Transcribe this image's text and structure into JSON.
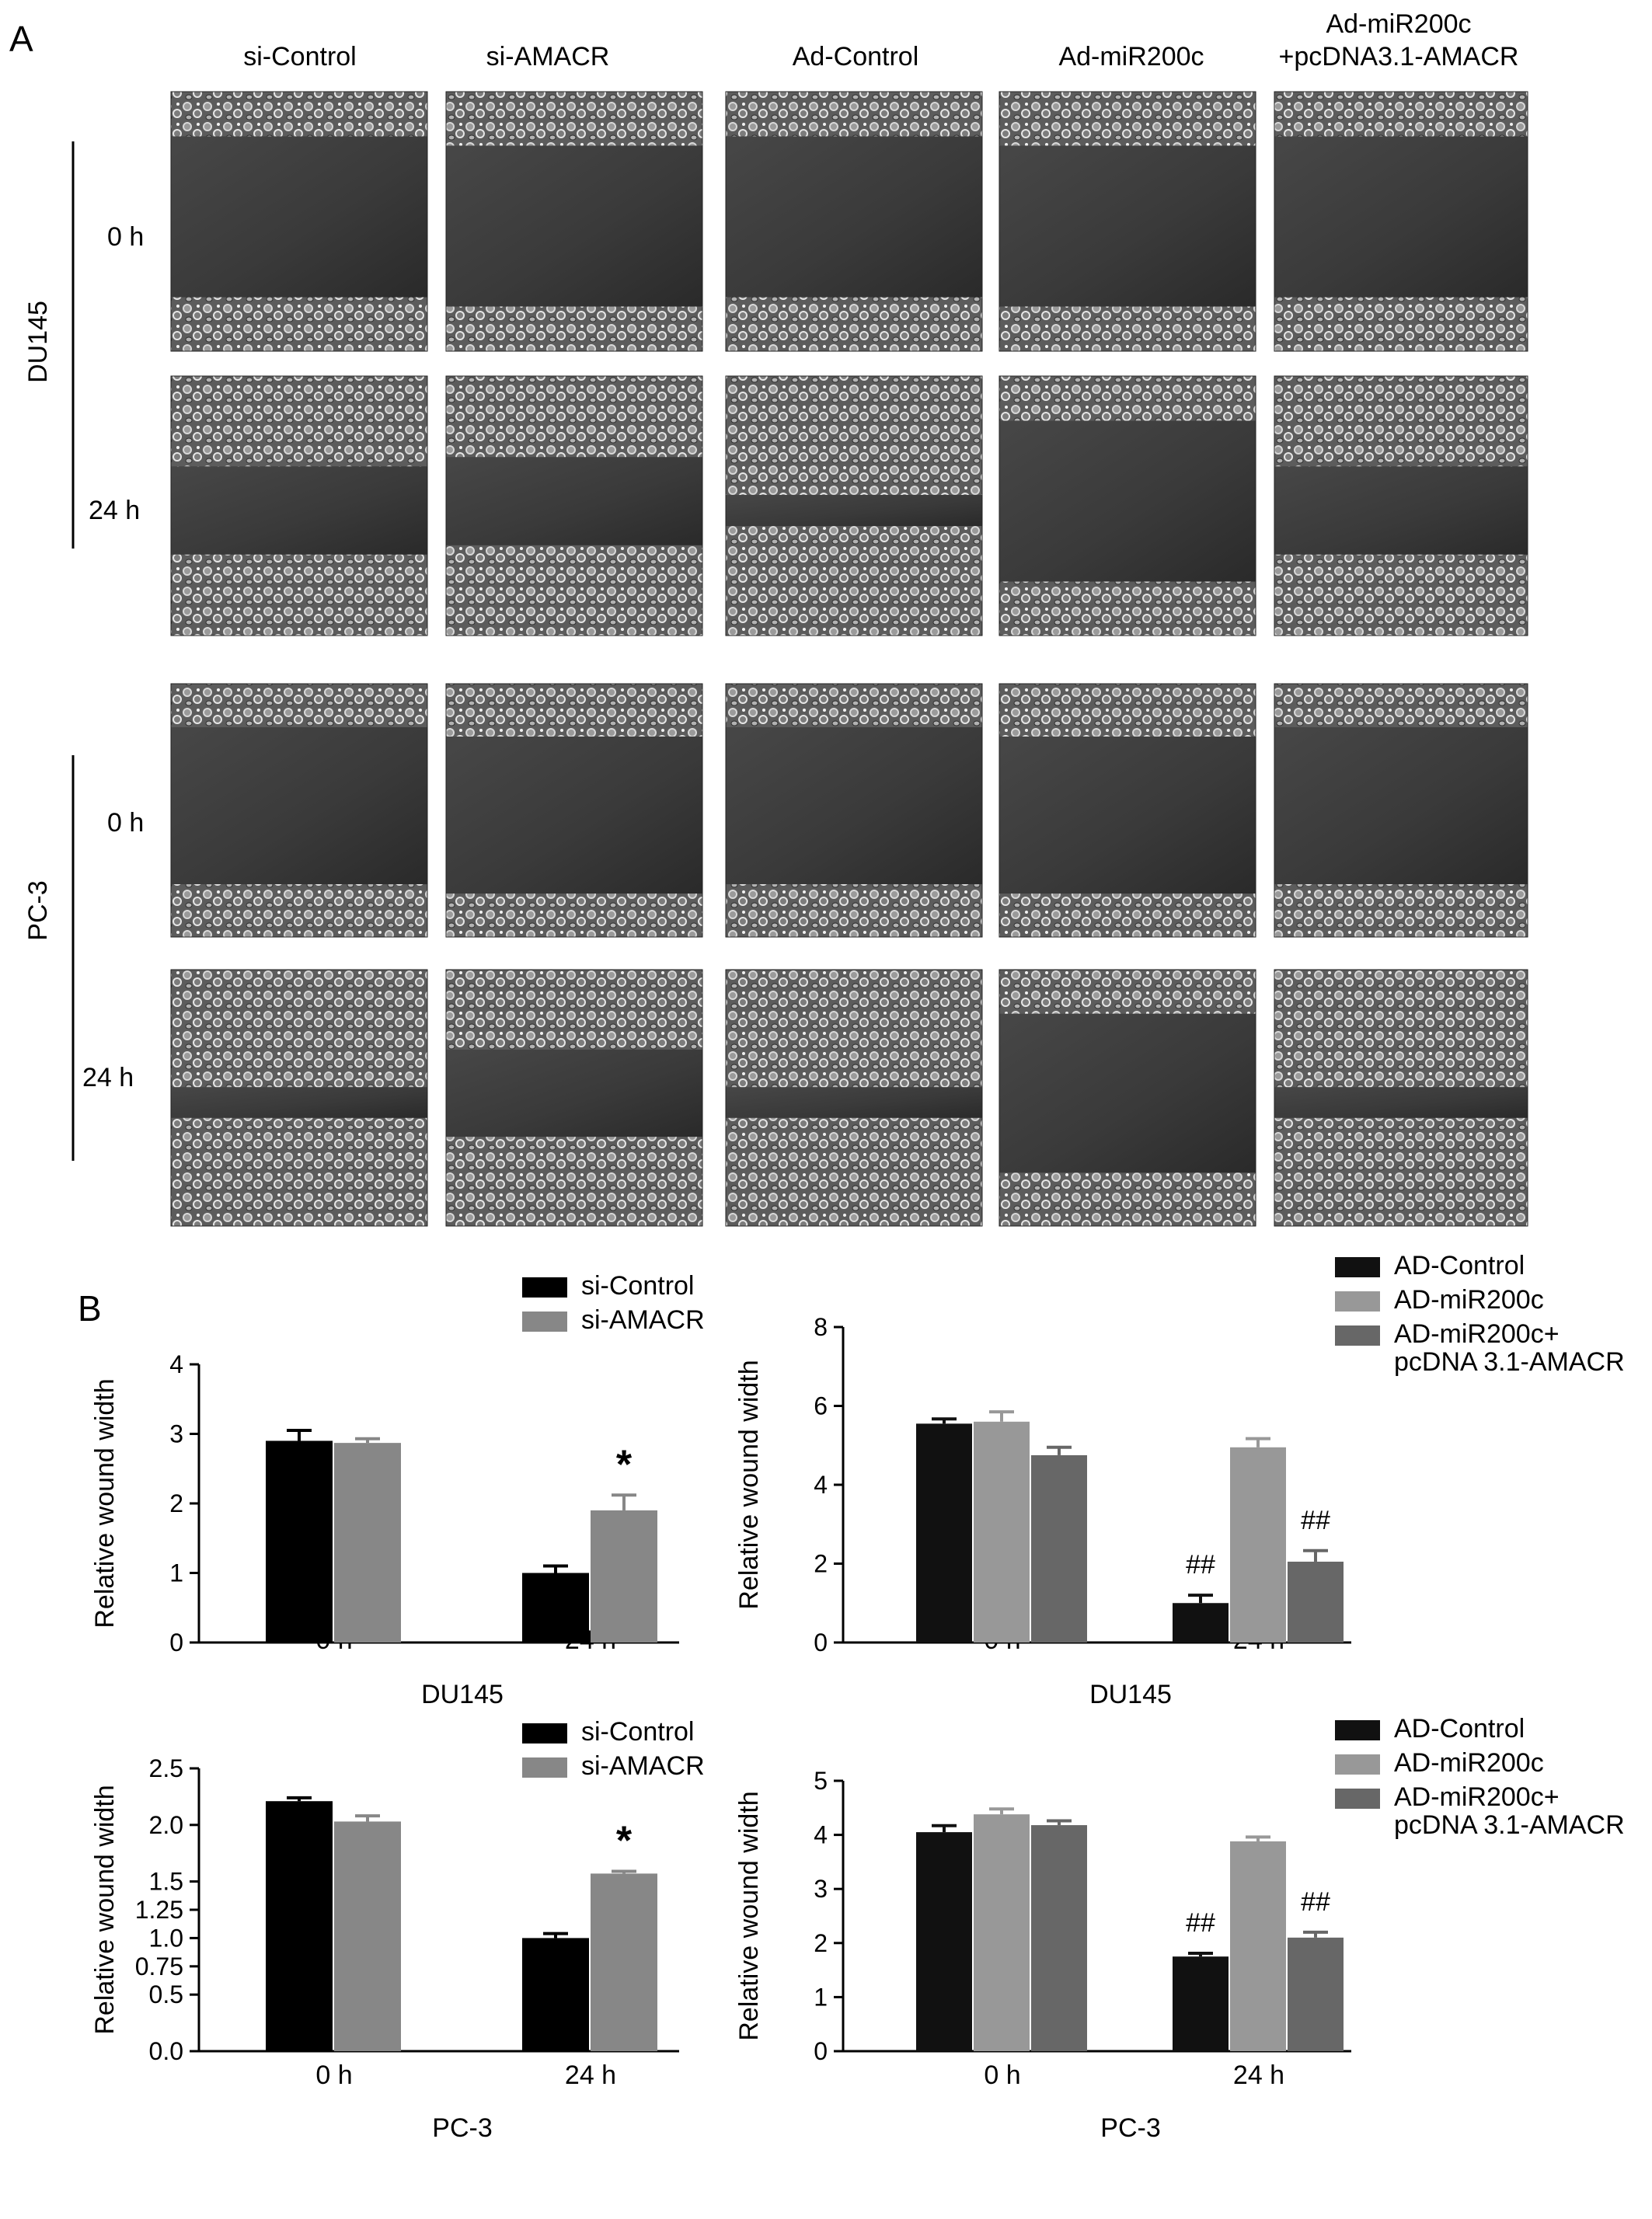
{
  "panel_a": {
    "label": "A",
    "columns": [
      "si-Control",
      "si-AMACR",
      "Ad-Control",
      "Ad-miR200c",
      [
        "Ad-miR200c",
        "+pcDNA3.1-AMACR"
      ]
    ],
    "rows": [
      {
        "cell_line": "DU145",
        "times": [
          "0 h",
          "24 h"
        ]
      },
      {
        "cell_line": "PC-3",
        "times": [
          "0 h",
          "24 h"
        ]
      }
    ],
    "micrographs": [
      [
        "open",
        "open",
        "open",
        "open",
        "open"
      ],
      [
        "narrow",
        "narrow",
        "closed",
        "open",
        "narrow"
      ],
      [
        "open",
        "open",
        "open",
        "open",
        "open"
      ],
      [
        "closed",
        "narrow",
        "closed",
        "open",
        "closed"
      ]
    ]
  },
  "panel_b": {
    "label": "B"
  },
  "chart_data": [
    {
      "type": "bar",
      "xlabel": "DU145",
      "ylabel": "Relative wound width",
      "ylim": [
        0,
        4
      ],
      "yticks": [
        "0",
        "1",
        "2",
        "3",
        "4"
      ],
      "categories": [
        "0 h",
        "24 h"
      ],
      "legend_position": "top-right",
      "series": [
        {
          "name": "si-Control",
          "color": "#000000",
          "values": [
            2.9,
            1.0
          ],
          "errors": [
            0.15,
            0.1
          ]
        },
        {
          "name": "si-AMACR",
          "color": "#878787",
          "values": [
            2.87,
            1.9
          ],
          "errors": [
            0.06,
            0.22
          ]
        }
      ],
      "annotations": [
        {
          "series": 1,
          "category": 1,
          "text": "*"
        }
      ]
    },
    {
      "type": "bar",
      "xlabel": "DU145",
      "ylabel": "Relative wound width",
      "ylim": [
        0,
        8
      ],
      "yticks": [
        "0",
        "2",
        "4",
        "6",
        "8"
      ],
      "categories": [
        "0 h",
        "24 h"
      ],
      "legend_position": "top-right",
      "series": [
        {
          "name": "AD-Control",
          "color": "#111111",
          "values": [
            5.55,
            1.0
          ],
          "errors": [
            0.12,
            0.2
          ]
        },
        {
          "name": "AD-miR200c",
          "color": "#989898",
          "values": [
            5.6,
            4.95
          ],
          "errors": [
            0.25,
            0.22
          ]
        },
        {
          "name": [
            "AD-miR200c+",
            "pcDNA 3.1-AMACR"
          ],
          "color": "#676767",
          "values": [
            4.75,
            2.05
          ],
          "errors": [
            0.2,
            0.28
          ]
        }
      ],
      "annotations": [
        {
          "series": 0,
          "category": 1,
          "text": "##"
        },
        {
          "series": 2,
          "category": 1,
          "text": "##"
        }
      ]
    },
    {
      "type": "bar",
      "xlabel": "PC-3",
      "ylabel": "Relative wound width",
      "ylim": [
        0,
        2.5
      ],
      "ytick_values": [
        0,
        0.5,
        0.75,
        1.0,
        1.25,
        1.5,
        2.0,
        2.5
      ],
      "yticks": [
        "0.0",
        "0.5",
        "0.75",
        "1.0",
        "1.25",
        "1.5",
        "2.0",
        "2.5"
      ],
      "categories": [
        "0 h",
        "24 h"
      ],
      "legend_position": "top-right",
      "series": [
        {
          "name": "si-Control",
          "color": "#000000",
          "values": [
            2.21,
            1.0
          ],
          "errors": [
            0.03,
            0.04
          ]
        },
        {
          "name": "si-AMACR",
          "color": "#878787",
          "values": [
            2.03,
            1.57
          ],
          "errors": [
            0.05,
            0.02
          ]
        }
      ],
      "annotations": [
        {
          "series": 1,
          "category": 1,
          "text": "*"
        }
      ]
    },
    {
      "type": "bar",
      "xlabel": "PC-3",
      "ylabel": "Relative wound width",
      "ylim": [
        0,
        5
      ],
      "yticks": [
        "0",
        "1",
        "2",
        "3",
        "4",
        "5"
      ],
      "categories": [
        "0 h",
        "24 h"
      ],
      "legend_position": "top-right",
      "series": [
        {
          "name": "AD-Control",
          "color": "#111111",
          "values": [
            4.05,
            1.75
          ],
          "errors": [
            0.12,
            0.06
          ]
        },
        {
          "name": "AD-miR200c",
          "color": "#989898",
          "values": [
            4.38,
            3.88
          ],
          "errors": [
            0.1,
            0.08
          ]
        },
        {
          "name": [
            "AD-miR200c+",
            "pcDNA 3.1-AMACR"
          ],
          "color": "#676767",
          "values": [
            4.18,
            2.1
          ],
          "errors": [
            0.08,
            0.1
          ]
        }
      ],
      "annotations": [
        {
          "series": 0,
          "category": 1,
          "text": "##"
        },
        {
          "series": 2,
          "category": 1,
          "text": "##"
        }
      ]
    }
  ]
}
